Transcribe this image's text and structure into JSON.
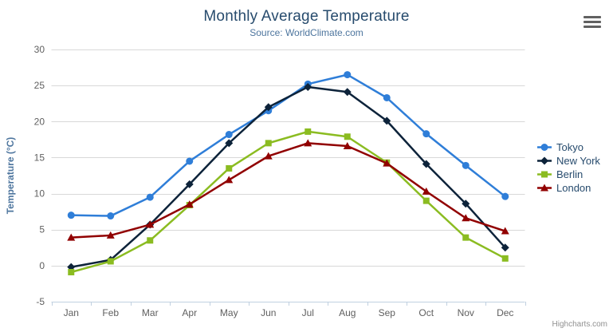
{
  "header": {
    "title": "Monthly Average Temperature",
    "subtitle": "Source: WorldClimate.com"
  },
  "yaxis": {
    "title": "Temperature (°C)",
    "min": -5,
    "max": 30,
    "tick_interval": 5
  },
  "chart_data": {
    "type": "line",
    "title": "Monthly Average Temperature",
    "subtitle": "Source: WorldClimate.com",
    "xlabel": "",
    "ylabel": "Temperature (°C)",
    "ylim": [
      -5,
      30
    ],
    "grid": true,
    "legend_position": "right",
    "categories": [
      "Jan",
      "Feb",
      "Mar",
      "Apr",
      "May",
      "Jun",
      "Jul",
      "Aug",
      "Sep",
      "Oct",
      "Nov",
      "Dec"
    ],
    "series": [
      {
        "name": "Tokyo",
        "color": "#2f7ed8",
        "marker": "circle",
        "values": [
          7.0,
          6.9,
          9.5,
          14.5,
          18.2,
          21.5,
          25.2,
          26.5,
          23.3,
          18.3,
          13.9,
          9.6
        ]
      },
      {
        "name": "New York",
        "color": "#0d233a",
        "marker": "diamond",
        "values": [
          -0.2,
          0.8,
          5.7,
          11.3,
          17.0,
          22.0,
          24.8,
          24.1,
          20.1,
          14.1,
          8.6,
          2.5
        ]
      },
      {
        "name": "Berlin",
        "color": "#8bbc21",
        "marker": "square",
        "values": [
          -0.9,
          0.6,
          3.5,
          8.4,
          13.5,
          17.0,
          18.6,
          17.9,
          14.3,
          9.0,
          3.9,
          1.0
        ]
      },
      {
        "name": "London",
        "color": "#910000",
        "marker": "triangle",
        "values": [
          3.9,
          4.2,
          5.7,
          8.5,
          11.9,
          15.2,
          17.0,
          16.6,
          14.2,
          10.3,
          6.6,
          4.8
        ]
      }
    ]
  },
  "colors": {
    "grid": "#d8d8d8",
    "axis_line": "#c0d0e0",
    "axis_label": "#606060",
    "legend_text": "#274b6d"
  },
  "credits": {
    "label": "Highcharts.com"
  }
}
